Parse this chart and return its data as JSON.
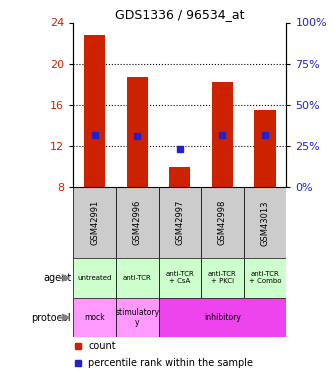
{
  "title": "GDS1336 / 96534_at",
  "samples": [
    "GSM42991",
    "GSM42996",
    "GSM42997",
    "GSM42998",
    "GSM43013"
  ],
  "bar_bottoms": [
    8.0,
    8.0,
    8.0,
    8.0,
    8.0
  ],
  "bar_tops": [
    22.8,
    18.7,
    10.0,
    18.2,
    15.5
  ],
  "blue_y": [
    13.1,
    13.0,
    11.7,
    13.1,
    13.1
  ],
  "ylim": [
    8,
    24
  ],
  "yticks_left": [
    8,
    12,
    16,
    20,
    24
  ],
  "yticks_right": [
    0,
    25,
    50,
    75,
    100
  ],
  "bar_color": "#cc2200",
  "blue_color": "#2222cc",
  "agent_labels": [
    "untreated",
    "anti-TCR",
    "anti-TCR\n+ CsA",
    "anti-TCR\n+ PKCi",
    "anti-TCR\n+ Combo"
  ],
  "agent_bg": "#ccffcc",
  "protocol_configs": [
    [
      0,
      1,
      "#ff99ff",
      "mock"
    ],
    [
      1,
      2,
      "#ff99ff",
      "stimulatory\ny"
    ],
    [
      2,
      5,
      "#ee44ee",
      "inhibitory"
    ]
  ],
  "sample_bg_color": "#cccccc",
  "legend_count_color": "#cc2200",
  "legend_pct_color": "#2222cc",
  "label_agent": "agent",
  "label_protocol": "protocol"
}
